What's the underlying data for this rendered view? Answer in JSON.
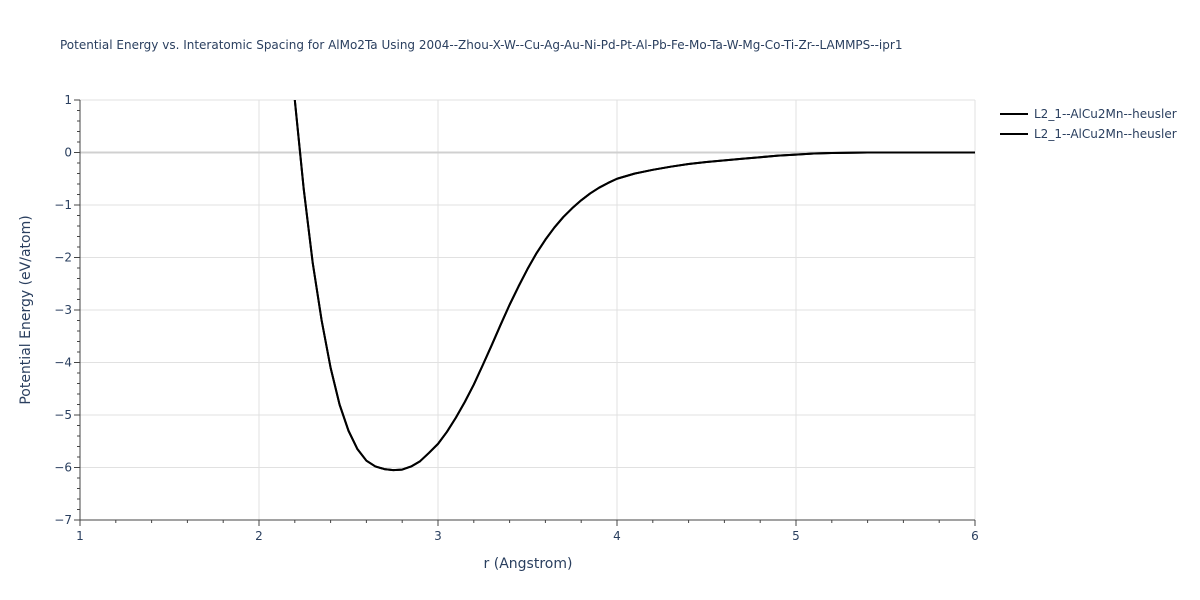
{
  "chart_data": {
    "type": "line",
    "title": "Potential Energy vs. Interatomic Spacing for AlMo2Ta Using 2004--Zhou-X-W--Cu-Ag-Au-Ni-Pd-Pt-Al-Pb-Fe-Mo-Ta-W-Mg-Co-Ti-Zr--LAMMPS--ipr1",
    "xlabel": "r (Angstrom)",
    "ylabel": "Potential Energy (eV/atom)",
    "xlim": [
      1,
      6
    ],
    "ylim": [
      -7,
      1
    ],
    "xticks": [
      1,
      2,
      3,
      4,
      5,
      6
    ],
    "yticks": [
      1,
      0,
      -1,
      -2,
      -3,
      -4,
      -5,
      -6,
      -7
    ],
    "xtick_labels": [
      "1",
      "2",
      "3",
      "4",
      "5",
      "6"
    ],
    "ytick_labels": [
      "1",
      "0",
      "−1",
      "−2",
      "−3",
      "−4",
      "−5",
      "−6",
      "−7"
    ],
    "grid": true,
    "legend_position": "top-right",
    "line_color": "#000000",
    "series": [
      {
        "name": "L2_1--AlCu2Mn--heusler",
        "x": [
          2.2,
          2.25,
          2.3,
          2.35,
          2.4,
          2.45,
          2.5,
          2.55,
          2.6,
          2.65,
          2.7,
          2.75,
          2.8,
          2.85,
          2.9,
          2.95,
          3.0,
          3.05,
          3.1,
          3.15,
          3.2,
          3.25,
          3.3,
          3.35,
          3.4,
          3.45,
          3.5,
          3.55,
          3.6,
          3.65,
          3.7,
          3.75,
          3.8,
          3.85,
          3.9,
          3.95,
          4.0,
          4.1,
          4.2,
          4.3,
          4.4,
          4.5,
          4.6,
          4.7,
          4.8,
          4.9,
          5.0,
          5.1,
          5.2,
          5.3,
          5.4,
          5.6,
          5.8,
          6.0
        ],
        "y": [
          1.0,
          -0.7,
          -2.1,
          -3.2,
          -4.1,
          -4.8,
          -5.3,
          -5.65,
          -5.87,
          -5.98,
          -6.03,
          -6.05,
          -6.04,
          -5.98,
          -5.88,
          -5.72,
          -5.55,
          -5.32,
          -5.05,
          -4.75,
          -4.42,
          -4.05,
          -3.67,
          -3.28,
          -2.9,
          -2.55,
          -2.22,
          -1.92,
          -1.66,
          -1.43,
          -1.23,
          -1.06,
          -0.91,
          -0.78,
          -0.67,
          -0.58,
          -0.5,
          -0.4,
          -0.33,
          -0.27,
          -0.22,
          -0.18,
          -0.15,
          -0.12,
          -0.09,
          -0.06,
          -0.04,
          -0.02,
          -0.01,
          -0.005,
          0.0,
          0.0,
          0.0,
          0.0
        ]
      },
      {
        "name": "L2_1--AlCu2Mn--heusler",
        "x": [
          2.2,
          2.25,
          2.3,
          2.35,
          2.4,
          2.45,
          2.5,
          2.55,
          2.6,
          2.65,
          2.7,
          2.75,
          2.8,
          2.85,
          2.9,
          2.95,
          3.0,
          3.05,
          3.1,
          3.15,
          3.2,
          3.25,
          3.3,
          3.35,
          3.4,
          3.45,
          3.5,
          3.55,
          3.6,
          3.65,
          3.7,
          3.75,
          3.8,
          3.85,
          3.9,
          3.95,
          4.0,
          4.1,
          4.2,
          4.3,
          4.4,
          4.5,
          4.6,
          4.7,
          4.8,
          4.9,
          5.0,
          5.1,
          5.2,
          5.3,
          5.4,
          5.6,
          5.8,
          6.0
        ],
        "y": [
          1.0,
          -0.7,
          -2.1,
          -3.2,
          -4.1,
          -4.8,
          -5.3,
          -5.65,
          -5.87,
          -5.98,
          -6.03,
          -6.05,
          -6.04,
          -5.98,
          -5.88,
          -5.72,
          -5.55,
          -5.32,
          -5.05,
          -4.75,
          -4.42,
          -4.05,
          -3.67,
          -3.28,
          -2.9,
          -2.55,
          -2.22,
          -1.92,
          -1.66,
          -1.43,
          -1.23,
          -1.06,
          -0.91,
          -0.78,
          -0.67,
          -0.58,
          -0.5,
          -0.4,
          -0.33,
          -0.27,
          -0.22,
          -0.18,
          -0.15,
          -0.12,
          -0.09,
          -0.06,
          -0.04,
          -0.02,
          -0.01,
          -0.005,
          0.0,
          0.0,
          0.0,
          0.0
        ]
      }
    ]
  }
}
